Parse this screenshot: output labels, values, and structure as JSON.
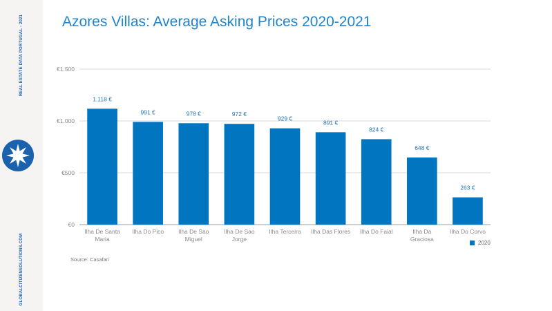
{
  "sidebar": {
    "top_text": "REAL ESTATE DATA PORTUGAL - 2021",
    "bottom_text": "GLOBALCITIZENSOLUTIONS.COM",
    "logo_icon": "star-compass-icon",
    "logo_color": "#1a62ad"
  },
  "title": "Azores Villas: Average Asking Prices 2020-2021",
  "source": "Source: Casafari",
  "colors": {
    "bar": "#0275c1",
    "title": "#1f84c9"
  },
  "chart_data": {
    "type": "bar",
    "categories": [
      "Ilha De Santa Maria",
      "Ilha Do Pico",
      "Ilha De Sao Miguel",
      "Ilha De Sao Jorge",
      "Ilha Terceira",
      "Ilha Das Flores",
      "Ilha Do Faial",
      "Ilha Da Graciosa",
      "Ilha Do Corvo"
    ],
    "category_lines": [
      [
        "Ilha De Santa",
        "Maria"
      ],
      [
        "Ilha Do Pico"
      ],
      [
        "Ilha De Sao",
        "Miguel"
      ],
      [
        "Ilha De Sao",
        "Jorge"
      ],
      [
        "Ilha Terceira"
      ],
      [
        "Ilha Das Flores"
      ],
      [
        "Ilha Do Faial"
      ],
      [
        "Ilha Da",
        "Graciosa"
      ],
      [
        "Ilha Do Corvo"
      ]
    ],
    "series": [
      {
        "name": "2020",
        "values": [
          1118,
          991,
          978,
          972,
          929,
          891,
          824,
          648,
          263
        ]
      }
    ],
    "data_labels": [
      "1.118 €",
      "991 €",
      "978 €",
      "972 €",
      "929 €",
      "891 €",
      "824 €",
      "648 €",
      "263 €"
    ],
    "ylim": [
      0,
      1500
    ],
    "yticks": [
      0,
      500,
      1000,
      1500
    ],
    "ytick_labels": [
      "€0",
      "€500",
      "€1.000",
      "€1.500"
    ],
    "grid": true,
    "legend_position": "bottom-right",
    "title": "Azores Villas: Average Asking Prices 2020-2021",
    "xlabel": "",
    "ylabel": ""
  }
}
